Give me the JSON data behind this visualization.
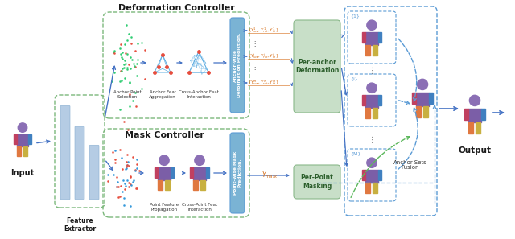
{
  "bg_color": "#ffffff",
  "deformation_controller_title": "Deformation Controller",
  "mask_controller_title": "Mask Controller",
  "feature_extractor_label": "Feature\nExtractor",
  "input_label": "Input",
  "output_label": "Output",
  "per_anchor_deformation_label": "Per-anchor\nDeformation",
  "per_point_masking_label": "Per-Point\nMasking",
  "anchor_sets_fusion_label": "Anchor-Sets\nFusion",
  "anchor_point_selection_label": "Anchor Point\nSelection",
  "anchor_feat_aggregation_label": "Anchor Feat\nAggregation",
  "cross_anchor_feat_interaction_label": "Cross-Anchor Feat\nInteraction",
  "anchor_wise_deformation_prediction_label": "Anchor-wise\nDeformation Prediction.",
  "point_wise_mask_prediction_label": "Point-wise Mask\nPrediction.",
  "point_feature_propagation_label": "Point Feature\nPropagation",
  "cross_point_feat_interaction_label": "Cross-Point Feat\nInteraction",
  "dashed_green_color": "#7cb87c",
  "dashed_blue_color": "#5b9bd5",
  "arrow_blue": "#4472c4",
  "text_dark": "#1a1a1a",
  "vertical_bar_color": "#a8c4e0",
  "per_anchor_green": "#c8dfc8",
  "per_anchor_green_border": "#8ab88a",
  "per_point_green": "#c8dfc8",
  "per_point_green_border": "#8ab88a",
  "blue_bar_color": "#7ab3d4",
  "blue_bar_border": "#5b9bd5"
}
